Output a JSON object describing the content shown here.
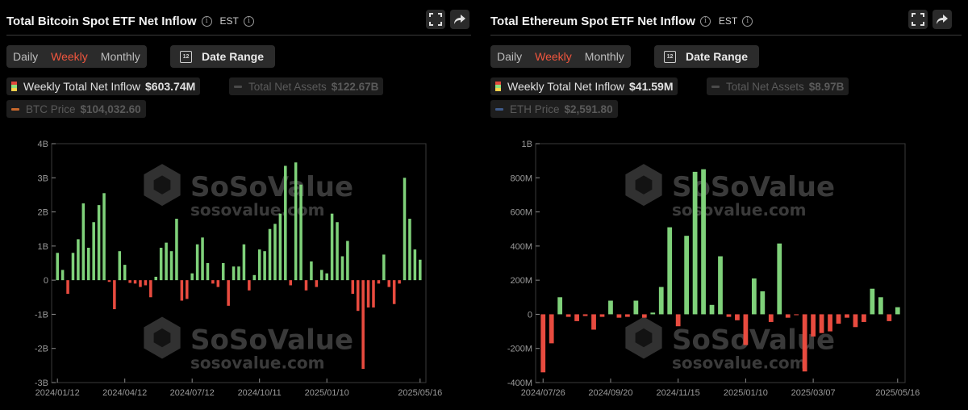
{
  "colors": {
    "positive": "#7fd17a",
    "negative": "#e84b3f",
    "accent": "#f0563e",
    "panel": "#2b2b2b"
  },
  "watermark": {
    "brand": "SoSoValue",
    "site": "sosovalue.com"
  },
  "panels": [
    {
      "title": "Total Bitcoin Spot ETF Net Inflow",
      "timezone": "EST",
      "tabs": [
        "Daily",
        "Weekly",
        "Monthly"
      ],
      "active_tab": "Weekly",
      "date_range_label": "Date Range",
      "calendar_day": "12",
      "legend": {
        "primary_label": "Weekly Total Net Inflow",
        "primary_value": "$603.74M",
        "assets_label": "Total Net Assets",
        "assets_value": "$122.67B",
        "price_label": "BTC Price",
        "price_value": "$104,032.60",
        "price_color": "#c8682c"
      }
    },
    {
      "title": "Total Ethereum Spot ETF Net Inflow",
      "timezone": "EST",
      "tabs": [
        "Daily",
        "Weekly",
        "Monthly"
      ],
      "active_tab": "Weekly",
      "date_range_label": "Date Range",
      "calendar_day": "12",
      "legend": {
        "primary_label": "Weekly Total Net Inflow",
        "primary_value": "$41.59M",
        "assets_label": "Total Net Assets",
        "assets_value": "$8.97B",
        "price_label": "ETH Price",
        "price_value": "$2,591.80",
        "price_color": "#3f5a8a"
      }
    }
  ],
  "chart_data": [
    {
      "type": "bar",
      "title": "Total Bitcoin Spot ETF Net Inflow",
      "series_name": "Weekly Total Net Inflow",
      "unit": "B USD",
      "ylim": [
        -3,
        4
      ],
      "yticks": [
        4,
        3,
        2,
        1,
        0,
        -1,
        -2,
        -3
      ],
      "ytick_labels": [
        "4B",
        "3B",
        "2B",
        "1B",
        "0",
        "-1B",
        "-2B",
        "-3B"
      ],
      "xtick_labels": [
        "2024/01/12",
        "2024/04/12",
        "2024/07/12",
        "2024/10/11",
        "2025/01/10",
        "2025/05/16"
      ],
      "xtick_index": [
        0,
        13,
        26,
        39,
        52,
        70
      ],
      "values": [
        0.8,
        0.3,
        -0.4,
        0.8,
        1.2,
        2.25,
        0.95,
        1.7,
        2.2,
        2.55,
        -0.05,
        -0.85,
        0.85,
        0.45,
        -0.08,
        -0.1,
        -0.2,
        -0.15,
        -0.5,
        0.1,
        0.95,
        1.1,
        0.85,
        1.8,
        -0.6,
        -0.55,
        0.2,
        1.05,
        1.25,
        0.5,
        -0.1,
        -0.2,
        0.5,
        -0.75,
        0.4,
        0.4,
        1.05,
        -0.3,
        0.15,
        0.9,
        0.85,
        1.5,
        1.65,
        1.95,
        3.35,
        -0.15,
        3.45,
        2.8,
        -0.3,
        0.55,
        -0.2,
        0.3,
        0.2,
        1.95,
        1.7,
        0.7,
        1.15,
        -0.4,
        -0.9,
        -2.6,
        -0.8,
        -0.8,
        -0.1,
        0.75,
        -0.2,
        -0.7,
        -0.1,
        3.0,
        1.8,
        0.9,
        0.6
      ]
    },
    {
      "type": "bar",
      "title": "Total Ethereum Spot ETF Net Inflow",
      "series_name": "Weekly Total Net Inflow",
      "unit": "M USD",
      "ylim": [
        -400,
        1000
      ],
      "yticks": [
        1000,
        800,
        600,
        400,
        200,
        0,
        -200,
        -400
      ],
      "ytick_labels": [
        "1B",
        "800M",
        "600M",
        "400M",
        "200M",
        "0",
        "-200M",
        "-400M"
      ],
      "xtick_labels": [
        "2024/07/26",
        "2024/09/20",
        "2024/11/15",
        "2025/01/10",
        "2025/03/07",
        "2025/05/16"
      ],
      "xtick_index": [
        0,
        8,
        16,
        24,
        32,
        42
      ],
      "values": [
        -340,
        -170,
        100,
        -15,
        -40,
        -10,
        -90,
        -15,
        80,
        -20,
        -15,
        80,
        -20,
        10,
        160,
        510,
        -70,
        460,
        835,
        850,
        55,
        340,
        -15,
        -35,
        -180,
        210,
        135,
        -45,
        415,
        -20,
        -5,
        -335,
        -130,
        -110,
        -100,
        -55,
        -20,
        -75,
        -45,
        150,
        100,
        -40,
        41.59
      ]
    }
  ]
}
